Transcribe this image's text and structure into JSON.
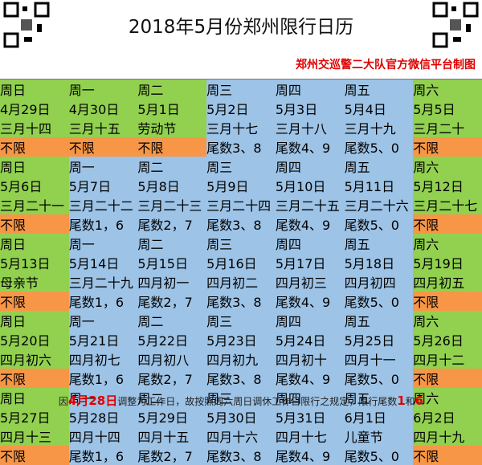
{
  "header": {
    "title": "2018年5月份郑州限行日历",
    "subtitle": "郑州交巡警二大队官方微信平台制图"
  },
  "calendar": {
    "rows": [
      [
        {
          "weekday": "周日",
          "date": "4月29日",
          "lunar": "三月十四",
          "limit": "不限",
          "color": "#92d050",
          "limit_color": "#f79646"
        },
        {
          "weekday": "周一",
          "date": "4月30日",
          "lunar": "三月十五",
          "limit": "不限",
          "color": "#92d050",
          "limit_color": "#f79646"
        },
        {
          "weekday": "周二",
          "date": "5月1日",
          "lunar": "劳动节",
          "limit": "不限",
          "color": "#92d050",
          "limit_color": "#f79646"
        },
        {
          "weekday": "周三",
          "date": "5月2日",
          "lunar": "三月十七",
          "limit": "尾数3、8",
          "color": "#9dc3e6",
          "limit_color": "#9dc3e6"
        },
        {
          "weekday": "周四",
          "date": "5月3日",
          "lunar": "三月十八",
          "limit": "尾数4、9",
          "color": "#9dc3e6",
          "limit_color": "#9dc3e6"
        },
        {
          "weekday": "周五",
          "date": "5月4日",
          "lunar": "三月十九",
          "limit": "尾数5、0",
          "color": "#9dc3e6",
          "limit_color": "#9dc3e6"
        },
        {
          "weekday": "周六",
          "date": "5月5日",
          "lunar": "三月二十",
          "limit": "不限",
          "color": "#92d050",
          "limit_color": "#f79646"
        }
      ],
      [
        {
          "weekday": "周日",
          "date": "5月6日",
          "lunar": "三月二十一",
          "limit": "不限",
          "color": "#92d050",
          "limit_color": "#f79646"
        },
        {
          "weekday": "周一",
          "date": "5月7日",
          "lunar": "三月二十二",
          "limit": "尾数1，6",
          "color": "#9dc3e6",
          "limit_color": "#9dc3e6"
        },
        {
          "weekday": "周二",
          "date": "5月8日",
          "lunar": "三月二十三",
          "limit": "尾数2，7",
          "color": "#9dc3e6",
          "limit_color": "#9dc3e6"
        },
        {
          "weekday": "周三",
          "date": "5月9日",
          "lunar": "三月二十四",
          "limit": "尾数3、8",
          "color": "#9dc3e6",
          "limit_color": "#9dc3e6"
        },
        {
          "weekday": "周四",
          "date": "5月10日",
          "lunar": "三月二十五",
          "limit": "尾数4、9",
          "color": "#9dc3e6",
          "limit_color": "#9dc3e6"
        },
        {
          "weekday": "周五",
          "date": "5月11日",
          "lunar": "三月二十六",
          "limit": "尾数5、0",
          "color": "#9dc3e6",
          "limit_color": "#9dc3e6"
        },
        {
          "weekday": "周六",
          "date": "5月12日",
          "lunar": "三月二十七",
          "limit": "不限",
          "color": "#92d050",
          "limit_color": "#f79646"
        }
      ],
      [
        {
          "weekday": "周日",
          "date": "5月13日",
          "lunar": "母亲节",
          "limit": "不限",
          "color": "#92d050",
          "limit_color": "#f79646"
        },
        {
          "weekday": "周一",
          "date": "5月14日",
          "lunar": "三月二十九",
          "limit": "尾数1，6",
          "color": "#9dc3e6",
          "limit_color": "#9dc3e6"
        },
        {
          "weekday": "周二",
          "date": "5月15日",
          "lunar": "四月初一",
          "limit": "尾数2，7",
          "color": "#9dc3e6",
          "limit_color": "#9dc3e6"
        },
        {
          "weekday": "周三",
          "date": "5月16日",
          "lunar": "四月初二",
          "limit": "尾数3、8",
          "color": "#9dc3e6",
          "limit_color": "#9dc3e6"
        },
        {
          "weekday": "周四",
          "date": "5月17日",
          "lunar": "四月初三",
          "limit": "尾数4、9",
          "color": "#9dc3e6",
          "limit_color": "#9dc3e6"
        },
        {
          "weekday": "周五",
          "date": "5月18日",
          "lunar": "四月初四",
          "limit": "尾数5、0",
          "color": "#9dc3e6",
          "limit_color": "#9dc3e6"
        },
        {
          "weekday": "周六",
          "date": "5月19日",
          "lunar": "四月初五",
          "limit": "不限",
          "color": "#92d050",
          "limit_color": "#f79646"
        }
      ],
      [
        {
          "weekday": "周日",
          "date": "5月20日",
          "lunar": "四月初六",
          "limit": "不限",
          "color": "#92d050",
          "limit_color": "#f79646"
        },
        {
          "weekday": "周一",
          "date": "5月21日",
          "lunar": "四月初七",
          "limit": "尾数1，6",
          "color": "#9dc3e6",
          "limit_color": "#9dc3e6"
        },
        {
          "weekday": "周二",
          "date": "5月22日",
          "lunar": "四月初八",
          "limit": "尾数2，7",
          "color": "#9dc3e6",
          "limit_color": "#9dc3e6"
        },
        {
          "weekday": "周三",
          "date": "5月23日",
          "lunar": "四月初九",
          "limit": "尾数3、8",
          "color": "#9dc3e6",
          "limit_color": "#9dc3e6"
        },
        {
          "weekday": "周四",
          "date": "5月24日",
          "lunar": "四月初十",
          "limit": "尾数4、9",
          "color": "#9dc3e6",
          "limit_color": "#9dc3e6"
        },
        {
          "weekday": "周五",
          "date": "5月25日",
          "lunar": "四月十一",
          "limit": "尾数5、0",
          "color": "#9dc3e6",
          "limit_color": "#9dc3e6"
        },
        {
          "weekday": "周六",
          "date": "5月26日",
          "lunar": "四月十二",
          "limit": "不限",
          "color": "#92d050",
          "limit_color": "#f79646"
        }
      ],
      [
        {
          "weekday": "周日",
          "date": "5月27日",
          "lunar": "四月十三",
          "limit": "不限",
          "color": "#92d050",
          "limit_color": "#f79646"
        },
        {
          "weekday": "周一",
          "date": "5月28日",
          "lunar": "四月十四",
          "limit": "尾数1，6",
          "color": "#9dc3e6",
          "limit_color": "#9dc3e6"
        },
        {
          "weekday": "周二",
          "date": "5月29日",
          "lunar": "四月十五",
          "limit": "尾数2，7",
          "color": "#9dc3e6",
          "limit_color": "#9dc3e6"
        },
        {
          "weekday": "周三",
          "date": "5月30日",
          "lunar": "四月十六",
          "limit": "尾数3、8",
          "color": "#9dc3e6",
          "limit_color": "#9dc3e6"
        },
        {
          "weekday": "周四",
          "date": "5月31日",
          "lunar": "四月十七",
          "limit": "尾数4、9",
          "color": "#9dc3e6",
          "limit_color": "#9dc3e6"
        },
        {
          "weekday": "周五",
          "date": "6月1日",
          "lunar": "儿童节",
          "limit": "尾数5、0",
          "color": "#9dc3e6",
          "limit_color": "#9dc3e6"
        },
        {
          "weekday": "周六",
          "date": "6月2日",
          "lunar": "四月十九",
          "limit": "不限",
          "color": "#92d050",
          "limit_color": "#f79646"
        }
      ]
    ]
  },
  "footer": {
    "note": [
      {
        "text": "因"
      },
      {
        "text": "4月28日",
        "color": "#e00000"
      },
      {
        "text": "调整为工作日，故按照周六周日调休工作日限行之规定，限行尾数"
      },
      {
        "text": "1",
        "color": "#e00000"
      },
      {
        "text": "和"
      },
      {
        "text": "6",
        "color": "#e00000"
      }
    ]
  }
}
